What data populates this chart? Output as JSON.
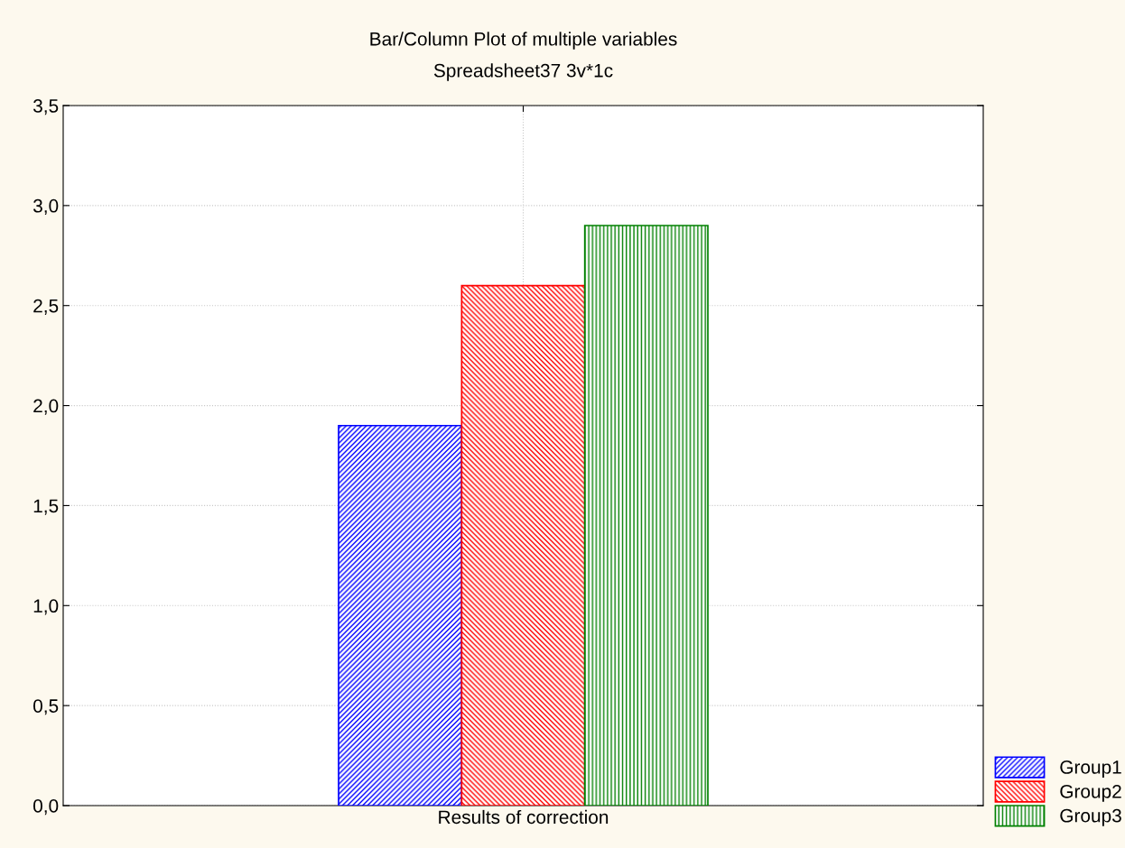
{
  "chart_data": {
    "type": "bar",
    "title": "Bar/Column Plot of multiple variables",
    "subtitle": "Spreadsheet37 3v*1c",
    "categories": [
      "Results of correction"
    ],
    "series": [
      {
        "name": "Group1",
        "color": "#0000ff",
        "values": [
          1.9
        ]
      },
      {
        "name": "Group2",
        "color": "#ff0000",
        "values": [
          2.6
        ]
      },
      {
        "name": "Group3",
        "color": "#008000",
        "values": [
          2.9
        ]
      }
    ],
    "ylim": [
      0,
      3.5
    ],
    "yticks": [
      {
        "value": 0,
        "label": "0,0"
      },
      {
        "value": 0.5,
        "label": "0,5"
      },
      {
        "value": 1,
        "label": "1,0"
      },
      {
        "value": 1.5,
        "label": "1,5"
      },
      {
        "value": 2,
        "label": "2,0"
      },
      {
        "value": 2.5,
        "label": "2,5"
      },
      {
        "value": 3,
        "label": "3,0"
      },
      {
        "value": 3.5,
        "label": "3,5"
      }
    ],
    "grid": true,
    "legend": "bottom right"
  }
}
